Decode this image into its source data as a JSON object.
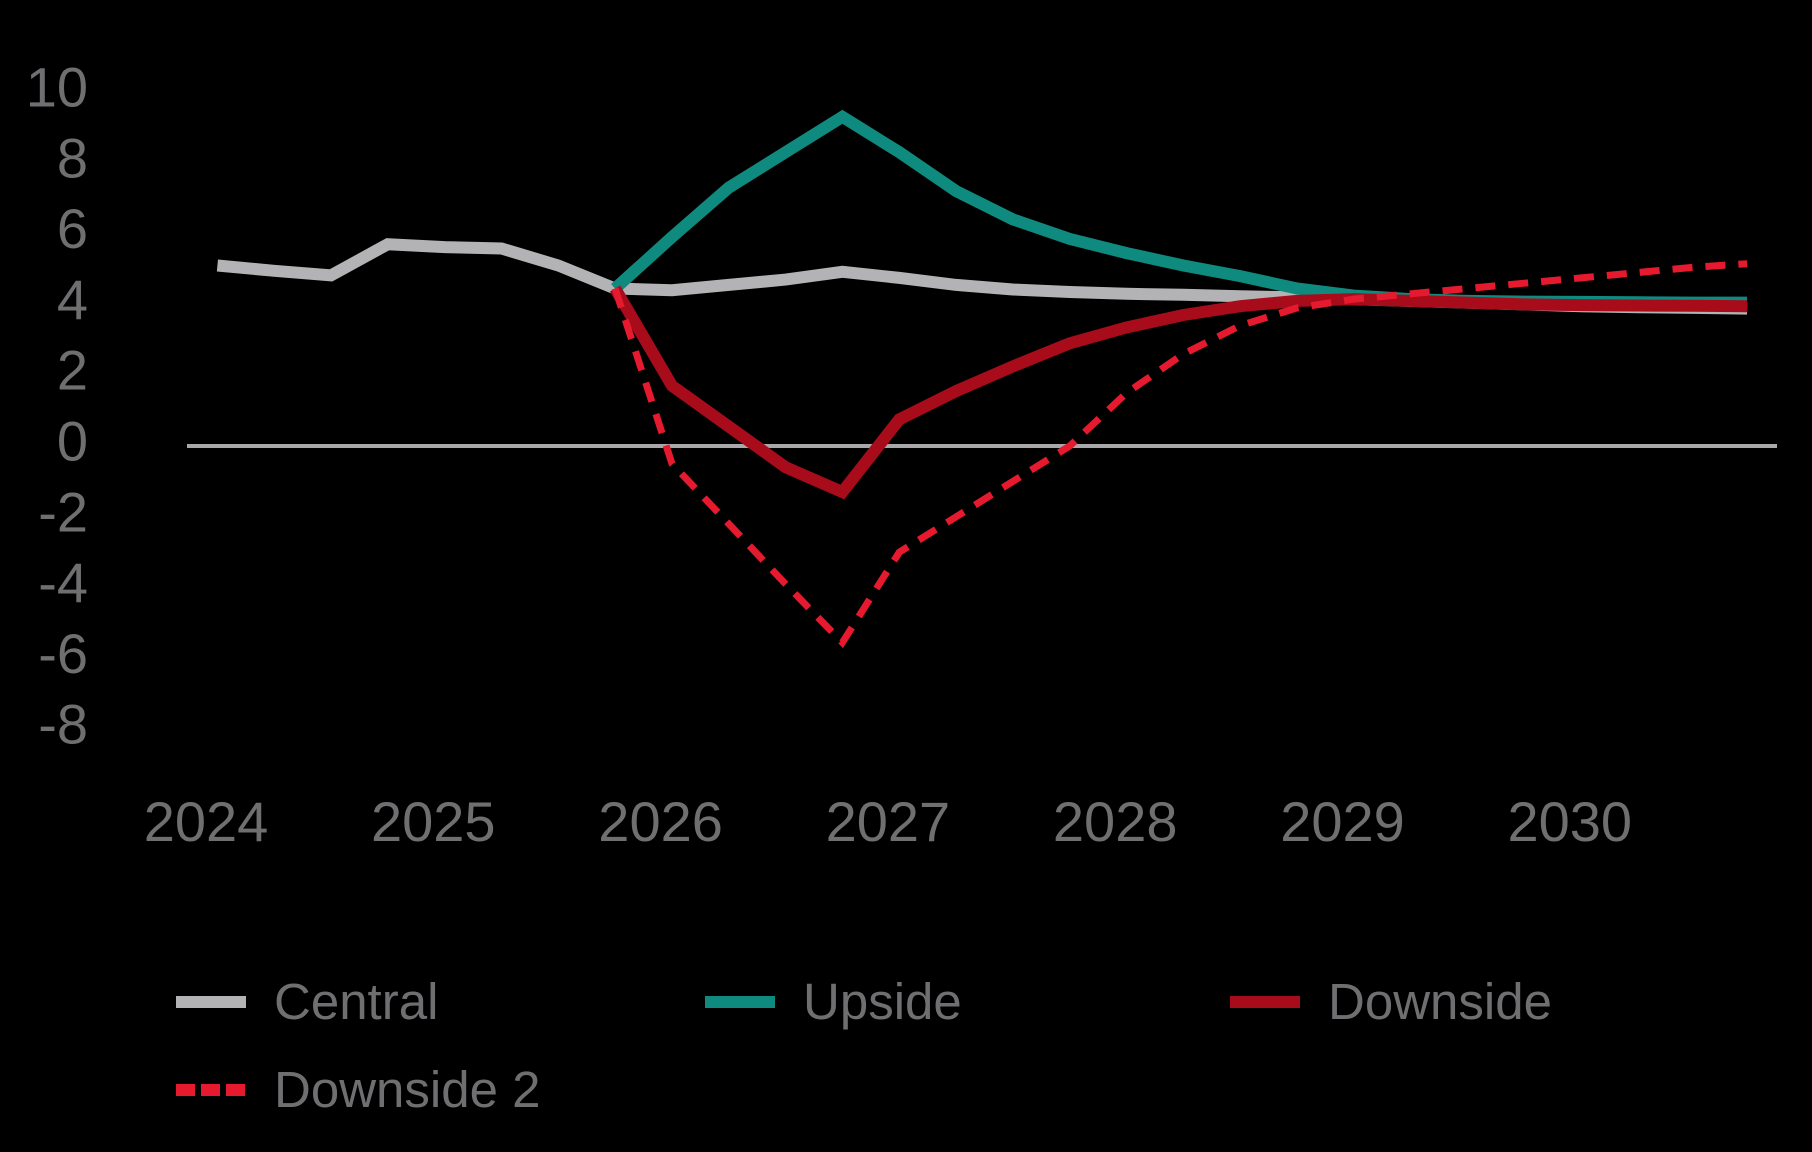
{
  "chart_data": {
    "type": "line",
    "title": "",
    "xlabel": "",
    "ylabel": "",
    "background": "#000000",
    "grid": false,
    "x_axis": {
      "ticks": [
        2024,
        2025,
        2026,
        2027,
        2028,
        2029,
        2030
      ],
      "range": [
        2023.9,
        2030.9
      ]
    },
    "y_axis": {
      "ticks": [
        10,
        8,
        6,
        4,
        2,
        0,
        -2,
        -4,
        -6,
        -8
      ],
      "range": [
        -8.5,
        10.5
      ],
      "zero_line": true,
      "zero_line_color": "#a8a8aa"
    },
    "legend_position": "bottom",
    "series": [
      {
        "name": "Central",
        "color": "#b3b2b4",
        "style": "solid",
        "points": [
          [
            2024.05,
            5.1
          ],
          [
            2024.3,
            4.95
          ],
          [
            2024.55,
            4.82
          ],
          [
            2024.8,
            5.7
          ],
          [
            2025.05,
            5.62
          ],
          [
            2025.3,
            5.58
          ],
          [
            2025.55,
            5.1
          ],
          [
            2025.8,
            4.45
          ],
          [
            2026.05,
            4.4
          ],
          [
            2026.3,
            4.55
          ],
          [
            2026.55,
            4.7
          ],
          [
            2026.8,
            4.92
          ],
          [
            2027.05,
            4.75
          ],
          [
            2027.3,
            4.55
          ],
          [
            2027.55,
            4.42
          ],
          [
            2027.8,
            4.35
          ],
          [
            2028.05,
            4.3
          ],
          [
            2028.3,
            4.27
          ],
          [
            2028.55,
            4.23
          ],
          [
            2028.8,
            4.2
          ],
          [
            2029.05,
            4.15
          ],
          [
            2029.3,
            4.1
          ],
          [
            2029.55,
            4.05
          ],
          [
            2029.8,
            4.0
          ],
          [
            2030.05,
            3.95
          ],
          [
            2030.3,
            3.92
          ],
          [
            2030.55,
            3.9
          ],
          [
            2030.78,
            3.88
          ]
        ]
      },
      {
        "name": "Upside",
        "color": "#0f8a7f",
        "style": "solid",
        "points": [
          [
            2025.8,
            4.45
          ],
          [
            2026.05,
            5.9
          ],
          [
            2026.3,
            7.3
          ],
          [
            2026.55,
            8.3
          ],
          [
            2026.8,
            9.3
          ],
          [
            2027.05,
            8.3
          ],
          [
            2027.3,
            7.2
          ],
          [
            2027.55,
            6.4
          ],
          [
            2027.8,
            5.85
          ],
          [
            2028.05,
            5.45
          ],
          [
            2028.3,
            5.1
          ],
          [
            2028.55,
            4.8
          ],
          [
            2028.8,
            4.45
          ],
          [
            2029.05,
            4.25
          ],
          [
            2029.3,
            4.15
          ],
          [
            2029.55,
            4.1
          ],
          [
            2029.8,
            4.08
          ],
          [
            2030.05,
            4.07
          ],
          [
            2030.3,
            4.06
          ],
          [
            2030.55,
            4.05
          ],
          [
            2030.78,
            4.05
          ]
        ]
      },
      {
        "name": "Downside",
        "color": "#a80c1b",
        "style": "solid",
        "points": [
          [
            2025.8,
            4.45
          ],
          [
            2026.05,
            1.7
          ],
          [
            2026.3,
            0.55
          ],
          [
            2026.55,
            -0.6
          ],
          [
            2026.8,
            -1.3
          ],
          [
            2027.05,
            0.75
          ],
          [
            2027.3,
            1.55
          ],
          [
            2027.55,
            2.25
          ],
          [
            2027.8,
            2.9
          ],
          [
            2028.05,
            3.35
          ],
          [
            2028.3,
            3.7
          ],
          [
            2028.55,
            3.95
          ],
          [
            2028.8,
            4.1
          ],
          [
            2029.05,
            4.15
          ],
          [
            2029.3,
            4.1
          ],
          [
            2029.55,
            4.05
          ],
          [
            2029.8,
            4.0
          ],
          [
            2030.05,
            3.98
          ],
          [
            2030.3,
            3.97
          ],
          [
            2030.55,
            3.96
          ],
          [
            2030.78,
            3.95
          ]
        ]
      },
      {
        "name": "Downside 2",
        "color": "#e51a2e",
        "style": "dashed",
        "points": [
          [
            2025.8,
            4.45
          ],
          [
            2026.05,
            -0.5
          ],
          [
            2026.3,
            -2.2
          ],
          [
            2026.55,
            -3.9
          ],
          [
            2026.8,
            -5.55
          ],
          [
            2027.05,
            -3.0
          ],
          [
            2027.3,
            -2.0
          ],
          [
            2027.55,
            -1.0
          ],
          [
            2027.8,
            0.0
          ],
          [
            2028.05,
            1.5
          ],
          [
            2028.3,
            2.6
          ],
          [
            2028.55,
            3.4
          ],
          [
            2028.8,
            3.9
          ],
          [
            2029.05,
            4.15
          ],
          [
            2029.3,
            4.3
          ],
          [
            2029.55,
            4.45
          ],
          [
            2029.8,
            4.6
          ],
          [
            2030.05,
            4.75
          ],
          [
            2030.3,
            4.9
          ],
          [
            2030.55,
            5.05
          ],
          [
            2030.78,
            5.15
          ]
        ]
      }
    ],
    "text_color": "#6f6f71"
  }
}
